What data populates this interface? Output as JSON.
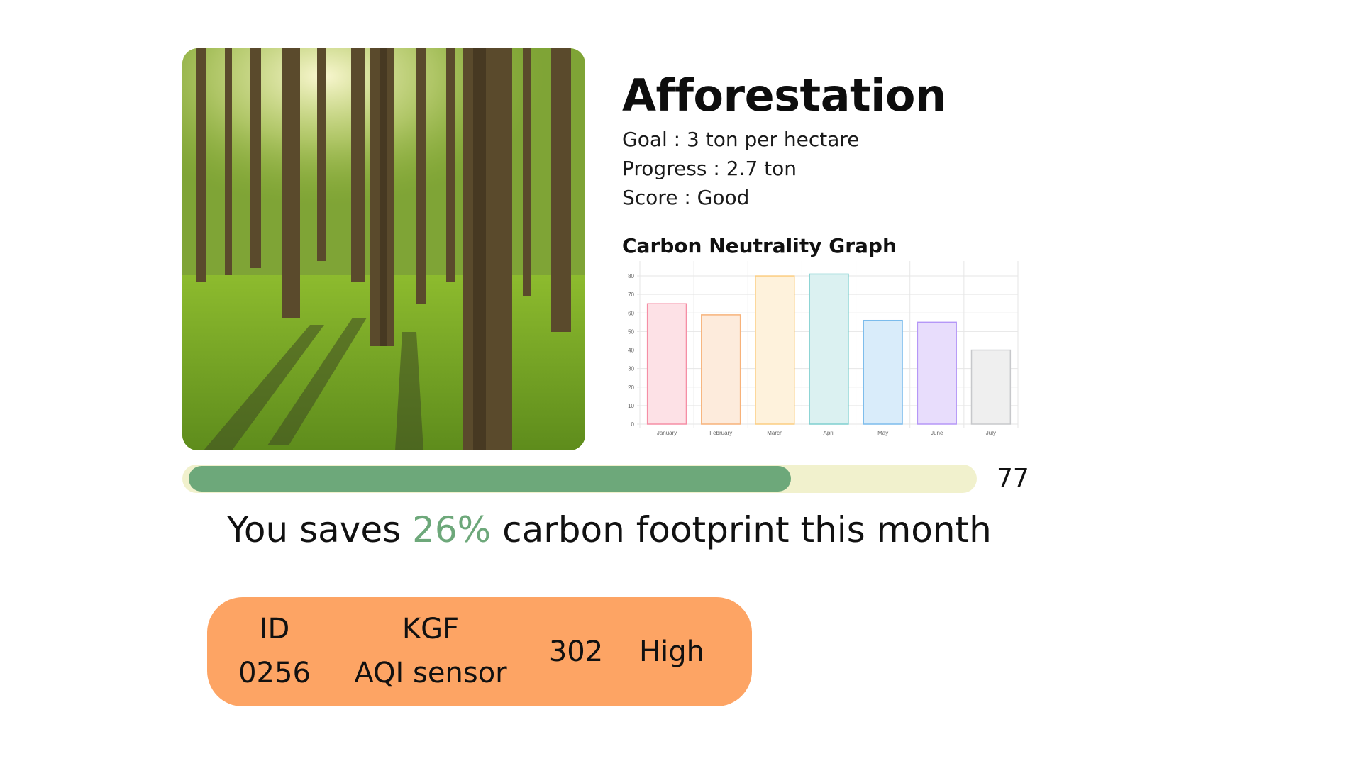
{
  "project": {
    "title": "Afforestation",
    "goal": "Goal : 3 ton per hectare",
    "progress": "Progress : 2.7 ton",
    "score": "Score : Good"
  },
  "colors": {
    "progress_fill": "#6da87a",
    "progress_track": "#f1f1cd",
    "device_card": "#fda464",
    "accent_text": "#6da87a"
  },
  "chart_data": {
    "type": "bar",
    "title": "Carbon Neutrality Graph",
    "categories": [
      "January",
      "February",
      "March",
      "April",
      "May",
      "June",
      "July"
    ],
    "values": [
      65,
      59,
      80,
      81,
      56,
      55,
      40
    ],
    "ylim": [
      0,
      85
    ],
    "yticks": [
      0,
      10,
      20,
      30,
      40,
      50,
      60,
      70,
      80
    ],
    "bar_colors": [
      {
        "fill": "#fde1e6",
        "stroke": "#f58ea5"
      },
      {
        "fill": "#fdebdc",
        "stroke": "#f7b27a"
      },
      {
        "fill": "#fef2dc",
        "stroke": "#fbcd81"
      },
      {
        "fill": "#dbf1f1",
        "stroke": "#7ecfcf"
      },
      {
        "fill": "#d9ecfa",
        "stroke": "#7cbcec"
      },
      {
        "fill": "#e8ddfc",
        "stroke": "#b597f7"
      },
      {
        "fill": "#efefef",
        "stroke": "#c7c8cb"
      }
    ],
    "grid": true
  },
  "progress_bar": {
    "value": 77,
    "label": "77"
  },
  "savings": {
    "prefix": "You saves ",
    "highlight": "26%",
    "suffix": " carbon footprint this month"
  },
  "device": {
    "id_label": "ID",
    "id_value": "0256",
    "name_line1": "KGF",
    "name_line2": "AQI sensor",
    "reading": "302",
    "level": "High"
  }
}
